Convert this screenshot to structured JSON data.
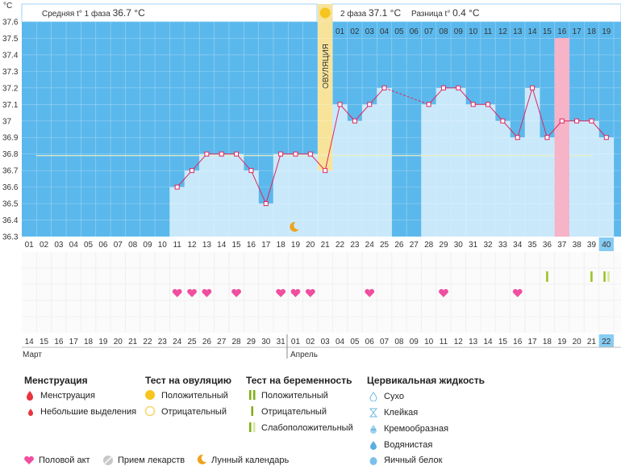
{
  "header": {
    "unit": "°C",
    "phase1_label": "Средняя t° 1 фаза",
    "phase1_value": "36.7 °C",
    "phase2_label": "2 фаза",
    "phase2_value": "37.1 °C",
    "diff_label": "Разница t°",
    "diff_value": "0.4 °C",
    "ovulation_label": "ОВУЛЯЦИЯ"
  },
  "chart_data": {
    "type": "line",
    "ylim": [
      36.3,
      37.6
    ],
    "y_ticks": [
      "37.6",
      "37.5",
      "37.4",
      "37.3",
      "37.2",
      "37.1",
      "37",
      "36.9",
      "36.8",
      "36.7",
      "36.6",
      "36.5",
      "36.4",
      "36.3"
    ],
    "cycle_days": [
      "01",
      "02",
      "03",
      "04",
      "05",
      "06",
      "07",
      "08",
      "09",
      "10",
      "11",
      "12",
      "13",
      "14",
      "15",
      "16",
      "17",
      "18",
      "19",
      "20",
      "21",
      "22",
      "23",
      "24",
      "25",
      "26",
      "27",
      "28",
      "29",
      "30",
      "31",
      "32",
      "33",
      "34",
      "35",
      "36",
      "37",
      "38",
      "39",
      "40"
    ],
    "post_ovulation_days": [
      "01",
      "02",
      "03",
      "04",
      "05",
      "06",
      "07",
      "08",
      "09",
      "10",
      "11",
      "12",
      "13",
      "14",
      "15",
      "16",
      "17",
      "18",
      "19"
    ],
    "dates": [
      "14",
      "15",
      "16",
      "17",
      "18",
      "19",
      "20",
      "21",
      "22",
      "23",
      "24",
      "25",
      "26",
      "27",
      "28",
      "29",
      "30",
      "31",
      "01",
      "02",
      "03",
      "04",
      "05",
      "06",
      "07",
      "08",
      "09",
      "10",
      "11",
      "12",
      "13",
      "14",
      "15",
      "16",
      "17",
      "18",
      "19",
      "20",
      "21",
      "22"
    ],
    "red_date_indices": [
      0,
      1,
      6,
      7,
      13,
      14,
      20,
      21,
      27,
      28,
      34,
      35
    ],
    "months": [
      "Март",
      "Апрель"
    ],
    "temperatures": [
      null,
      null,
      null,
      null,
      null,
      null,
      null,
      null,
      null,
      null,
      36.6,
      36.7,
      36.8,
      36.8,
      36.8,
      36.7,
      36.5,
      36.8,
      36.8,
      36.8,
      36.7,
      37.1,
      37.0,
      37.1,
      37.2,
      null,
      null,
      37.1,
      37.2,
      37.2,
      37.1,
      37.1,
      37.0,
      36.9,
      37.2,
      36.9,
      37.0,
      37.0,
      37.0,
      36.9
    ],
    "coverline": 36.8,
    "ovulation_day": 21,
    "highlight_day": 37,
    "current_day": 40,
    "intercourse_days": [
      11,
      12,
      13,
      15,
      18,
      19,
      20,
      24,
      29,
      34
    ],
    "pregnancy_tests": [
      {
        "day": 36,
        "result": "negative"
      },
      {
        "day": 39,
        "result": "negative"
      },
      {
        "day": 40,
        "result": "weak"
      }
    ],
    "lunar_day": 19
  },
  "legend": {
    "menstruation": {
      "title": "Менструация",
      "items": [
        "Менструация",
        "Небольшие выделения"
      ]
    },
    "ovulation_test": {
      "title": "Тест на овуляцию",
      "items": [
        "Положительный",
        "Отрицательный"
      ]
    },
    "pregnancy_test": {
      "title": "Тест на беременность",
      "items": [
        "Положительный",
        "Отрицательный",
        "Слабоположительный"
      ]
    },
    "cervical": {
      "title": "Цервикальная жидкость",
      "items": [
        "Сухо",
        "Клейкая",
        "Кремообразная",
        "Водянистая",
        "Яичный белок"
      ]
    },
    "bottom": [
      "Половой акт",
      "Прием лекарств",
      "Лунный календарь"
    ]
  },
  "colors": {
    "bg_blue": "#5bb8ec",
    "bar_fill": "#c9e9fb",
    "line": "#e0245e",
    "ovulation": "#f7e39a",
    "highlight": "#f7b3c8",
    "heart": "#f04fa0",
    "test_green": "#99c21f",
    "red_date": "#e0245e"
  }
}
